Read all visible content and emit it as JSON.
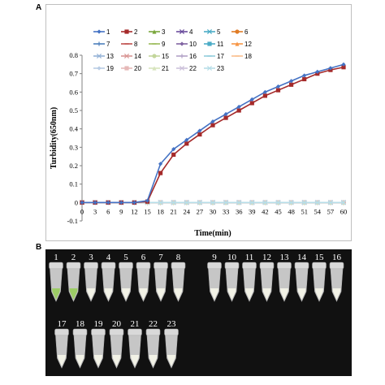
{
  "panels": {
    "a_label": "A",
    "b_label": "B"
  },
  "chart_data": {
    "type": "line",
    "title": "",
    "xlabel": "Time(min)",
    "ylabel": "Turbidity(650nm)",
    "x": [
      0,
      3,
      6,
      9,
      12,
      15,
      18,
      21,
      24,
      27,
      30,
      33,
      36,
      39,
      42,
      45,
      48,
      51,
      54,
      57,
      60
    ],
    "xticks": [
      "0",
      "3",
      "6",
      "9",
      "12",
      "15",
      "18",
      "21",
      "24",
      "27",
      "30",
      "33",
      "36",
      "39",
      "42",
      "45",
      "48",
      "51",
      "54",
      "57",
      "60"
    ],
    "ylim": [
      -0.1,
      0.8
    ],
    "yticks": [
      "-0.1",
      "0",
      "0.1",
      "0.2",
      "0.3",
      "0.4",
      "0.5",
      "0.6",
      "0.7",
      "0.8"
    ],
    "grid": false,
    "legend_placement": "top-left",
    "series": [
      {
        "name": "1",
        "color": "#4472c4",
        "marker": "diamond",
        "values": [
          0,
          0,
          0,
          0,
          0,
          0.01,
          0.21,
          0.29,
          0.34,
          0.39,
          0.44,
          0.48,
          0.52,
          0.56,
          0.6,
          0.63,
          0.66,
          0.69,
          0.71,
          0.73,
          0.75
        ]
      },
      {
        "name": "2",
        "color": "#a52a2a",
        "marker": "square",
        "values": [
          0,
          0,
          0,
          0,
          0,
          0.005,
          0.16,
          0.26,
          0.32,
          0.37,
          0.42,
          0.46,
          0.5,
          0.54,
          0.58,
          0.61,
          0.64,
          0.67,
          0.7,
          0.72,
          0.735
        ]
      },
      {
        "name": "3",
        "color": "#7aa63c",
        "marker": "triangle",
        "values": [
          0,
          0,
          0,
          0,
          0,
          0,
          0,
          0,
          0,
          0,
          0,
          0,
          0,
          0,
          0,
          0,
          0,
          0,
          0,
          0,
          0
        ]
      },
      {
        "name": "4",
        "color": "#6a4c9c",
        "marker": "x",
        "values": [
          0,
          0,
          0,
          0,
          0,
          0,
          0,
          0,
          0,
          0,
          0,
          0,
          0,
          0,
          0,
          0,
          0,
          0,
          0,
          0,
          0
        ]
      },
      {
        "name": "5",
        "color": "#4bacc6",
        "marker": "x",
        "values": [
          0,
          0,
          0,
          0,
          0,
          0,
          0,
          0,
          0,
          0,
          0,
          0,
          0,
          0,
          0,
          0,
          0,
          0,
          0,
          0,
          0
        ]
      },
      {
        "name": "6",
        "color": "#e07b25",
        "marker": "circle",
        "values": [
          0,
          0,
          0,
          0,
          0,
          0,
          0,
          0,
          0,
          0,
          0,
          0,
          0,
          0,
          0,
          0,
          0,
          0,
          0,
          0,
          0
        ]
      },
      {
        "name": "7",
        "color": "#4f81bd",
        "marker": "plus",
        "values": [
          0,
          0,
          0,
          0,
          0,
          0,
          0,
          0,
          0,
          0,
          0,
          0,
          0,
          0,
          0,
          0,
          0,
          0,
          0,
          0,
          0
        ]
      },
      {
        "name": "8",
        "color": "#c0504d",
        "marker": "dash",
        "values": [
          0,
          0,
          0,
          0,
          0,
          0,
          0,
          0,
          0,
          0,
          0,
          0,
          0,
          0,
          0,
          0,
          0,
          0,
          0,
          0,
          0
        ]
      },
      {
        "name": "9",
        "color": "#9bbb59",
        "marker": "dash",
        "values": [
          0,
          0,
          0,
          0,
          0,
          0,
          0,
          0,
          0,
          0,
          0,
          0,
          0,
          0,
          0,
          0,
          0,
          0,
          0,
          0,
          0
        ]
      },
      {
        "name": "10",
        "color": "#8064a2",
        "marker": "diamond",
        "values": [
          0,
          0,
          0,
          0,
          0,
          0,
          0,
          0,
          0,
          0,
          0,
          0,
          0,
          0,
          0,
          0,
          0,
          0,
          0,
          0,
          0
        ]
      },
      {
        "name": "11",
        "color": "#4bacc6",
        "marker": "square",
        "values": [
          0,
          0,
          0,
          0,
          0,
          0,
          0,
          0,
          0,
          0,
          0,
          0,
          0,
          0,
          0,
          0,
          0,
          0,
          0,
          0,
          0
        ]
      },
      {
        "name": "12",
        "color": "#f79646",
        "marker": "triangle",
        "values": [
          0,
          0,
          0,
          0,
          0,
          0,
          0,
          0,
          0,
          0,
          0,
          0,
          0,
          0,
          0,
          0,
          0,
          0,
          0,
          0,
          0
        ]
      },
      {
        "name": "13",
        "color": "#95b3d7",
        "marker": "x",
        "values": [
          0,
          0,
          0,
          0,
          0,
          0,
          0,
          0,
          0,
          0,
          0,
          0,
          0,
          0,
          0,
          0,
          0,
          0,
          0,
          0,
          0
        ]
      },
      {
        "name": "14",
        "color": "#d99694",
        "marker": "x",
        "values": [
          0,
          0,
          0,
          0,
          0,
          0,
          0,
          0,
          0,
          0,
          0,
          0,
          0,
          0,
          0,
          0,
          0,
          0,
          0,
          0,
          0
        ]
      },
      {
        "name": "15",
        "color": "#c3d69b",
        "marker": "circle",
        "values": [
          0,
          0,
          0,
          0,
          0,
          0,
          0,
          0,
          0,
          0,
          0,
          0,
          0,
          0,
          0,
          0,
          0,
          0,
          0,
          0,
          0
        ]
      },
      {
        "name": "16",
        "color": "#b2a2c7",
        "marker": "plus",
        "values": [
          0,
          0,
          0,
          0,
          0,
          0,
          0,
          0,
          0,
          0,
          0,
          0,
          0,
          0,
          0,
          0,
          0,
          0,
          0,
          0,
          0
        ]
      },
      {
        "name": "17",
        "color": "#92cddc",
        "marker": "dash",
        "values": [
          0,
          0,
          0,
          0,
          0,
          0,
          0,
          0,
          0,
          0,
          0,
          0,
          0,
          0,
          0,
          0,
          0,
          0,
          0,
          0,
          0
        ]
      },
      {
        "name": "18",
        "color": "#fac08f",
        "marker": "dash",
        "values": [
          0,
          0,
          0,
          0,
          0,
          0,
          0,
          0,
          0,
          0,
          0,
          0,
          0,
          0,
          0,
          0,
          0,
          0,
          0,
          0,
          0
        ]
      },
      {
        "name": "19",
        "color": "#b8cce4",
        "marker": "diamond",
        "values": [
          0,
          0,
          0,
          0,
          0,
          0,
          0,
          0,
          0,
          0,
          0,
          0,
          0,
          0,
          0,
          0,
          0,
          0,
          0,
          0,
          0
        ]
      },
      {
        "name": "20",
        "color": "#e6b9b8",
        "marker": "square",
        "values": [
          0,
          0,
          0,
          0,
          0,
          0,
          0,
          0,
          0,
          0,
          0,
          0,
          0,
          0,
          0,
          0,
          0,
          0,
          0,
          0,
          0
        ]
      },
      {
        "name": "21",
        "color": "#d7e4bd",
        "marker": "triangle",
        "values": [
          0,
          0,
          0,
          0,
          0,
          0,
          0,
          0,
          0,
          0,
          0,
          0,
          0,
          0,
          0,
          0,
          0,
          0,
          0,
          0,
          0
        ]
      },
      {
        "name": "22",
        "color": "#ccc1da",
        "marker": "x",
        "values": [
          0,
          0,
          0,
          0,
          0,
          0,
          0,
          0,
          0,
          0,
          0,
          0,
          0,
          0,
          0,
          0,
          0,
          0,
          0,
          0,
          0
        ]
      },
      {
        "name": "23",
        "color": "#b7dee8",
        "marker": "x",
        "values": [
          0,
          0,
          0,
          0,
          0,
          0,
          0,
          0,
          0,
          0,
          0,
          0,
          0,
          0,
          0,
          0,
          0,
          0,
          0,
          0,
          0
        ]
      }
    ]
  },
  "photo": {
    "tube_labels_row1_left": [
      "1",
      "2",
      "3",
      "4",
      "5",
      "6",
      "7",
      "8"
    ],
    "tube_labels_row1_right": [
      "9",
      "10",
      "11",
      "12",
      "13",
      "14",
      "15",
      "16"
    ],
    "tube_labels_row2": [
      "17",
      "18",
      "19",
      "20",
      "21",
      "22",
      "23"
    ],
    "positive_tubes": [
      "1",
      "2"
    ]
  }
}
